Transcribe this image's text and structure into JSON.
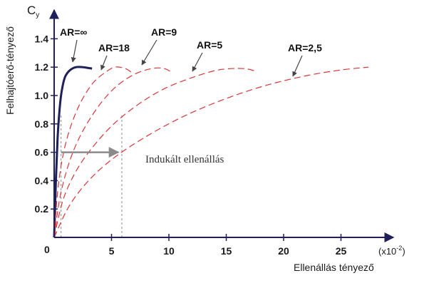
{
  "chart_data": {
    "type": "line",
    "title": "",
    "ylabel": "Felhajtóerő-tényező",
    "ylabel_symbol": "C",
    "ylabel_subscript": "y",
    "xlabel": "Ellenállás tényező",
    "x_unit": "(x10",
    "x_unit_exp": "-2",
    "x_unit_close": ")",
    "xlim": [
      0,
      28
    ],
    "ylim": [
      0,
      1.45
    ],
    "origin_label": "0",
    "x_ticks": [
      5,
      10,
      15,
      20,
      25
    ],
    "x_tick_labels": [
      "5",
      "10",
      "15",
      "20",
      "25"
    ],
    "y_ticks": [
      0.2,
      0.4,
      0.6,
      0.8,
      1.0,
      1.2,
      1.4
    ],
    "y_tick_labels": [
      "0.2",
      "0.4",
      "0.6",
      "0.8",
      "1.0",
      "1.2",
      "1.4"
    ],
    "series": [
      {
        "name": "AR=∞",
        "color": "#1f1f5a",
        "style": "solid",
        "x": [
          0.0,
          0.15,
          0.3,
          0.45,
          0.6,
          0.8,
          1.0,
          1.4,
          1.9,
          2.5,
          3.3
        ],
        "y": [
          0.0,
          0.4,
          0.7,
          0.88,
          1.0,
          1.09,
          1.14,
          1.18,
          1.2,
          1.2,
          1.19
        ]
      },
      {
        "name": "AR=18",
        "color": "#d8363a",
        "style": "dashed",
        "x": [
          0.0,
          0.3,
          0.7,
          1.2,
          1.8,
          2.5,
          3.4,
          4.4,
          5.3,
          6.2,
          6.8
        ],
        "y": [
          0.0,
          0.32,
          0.55,
          0.72,
          0.86,
          0.98,
          1.09,
          1.16,
          1.2,
          1.19,
          1.16
        ]
      },
      {
        "name": "AR=9",
        "color": "#d8363a",
        "style": "dashed",
        "x": [
          0.0,
          0.5,
          1.2,
          2.0,
          3.0,
          4.2,
          5.5,
          7.0,
          8.5,
          9.6,
          10.3
        ],
        "y": [
          0.0,
          0.28,
          0.5,
          0.67,
          0.82,
          0.96,
          1.07,
          1.15,
          1.19,
          1.19,
          1.16
        ]
      },
      {
        "name": "AR=5",
        "color": "#d8363a",
        "style": "dashed",
        "x": [
          0.0,
          0.8,
          2.0,
          3.5,
          5.2,
          7.2,
          9.4,
          11.8,
          14.3,
          16.5,
          17.6
        ],
        "y": [
          0.0,
          0.27,
          0.48,
          0.65,
          0.8,
          0.93,
          1.04,
          1.12,
          1.18,
          1.19,
          1.17
        ]
      },
      {
        "name": "AR=2,5",
        "color": "#d8363a",
        "style": "dashed",
        "x": [
          0.0,
          1.3,
          3.0,
          5.2,
          8.0,
          11.2,
          14.7,
          18.4,
          22.0,
          25.0,
          27.4
        ],
        "y": [
          0.0,
          0.22,
          0.4,
          0.56,
          0.71,
          0.85,
          0.97,
          1.07,
          1.14,
          1.18,
          1.2
        ]
      }
    ],
    "labels": [
      {
        "text": "AR=∞"
      },
      {
        "text": "AR=18"
      },
      {
        "text": "AR=9"
      },
      {
        "text": "AR=5"
      },
      {
        "text": "AR=2,5"
      }
    ],
    "annotation": {
      "text": "Indukált ellenállás",
      "y": 0.6,
      "x_from": 0.6,
      "x_to": 5.6
    },
    "reference_lines": [
      {
        "x": 0.6,
        "y_top": 0.86
      },
      {
        "x": 5.9,
        "y_top": 0.87
      }
    ]
  }
}
